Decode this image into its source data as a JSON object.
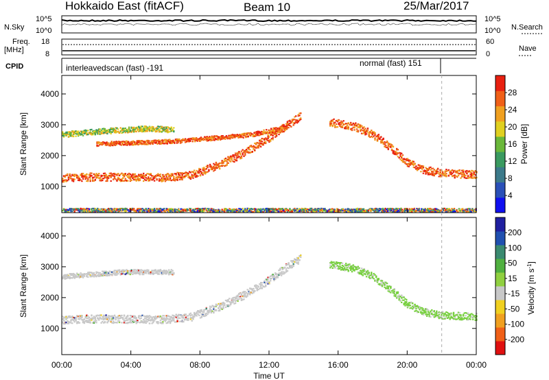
{
  "header": {
    "radar": "Hokkaido East (fitACF)",
    "beam": "Beam 10",
    "date": "25/Mar/2017"
  },
  "noise_panel": {
    "left_label": "N.Sky",
    "right_label": "N.Search",
    "tick_top": "10^5",
    "tick_bottom": "10^0"
  },
  "freq_panel": {
    "label_line1": "Freq.",
    "label_line2": "[MHz]",
    "tick_top": "18",
    "tick_bottom": "8",
    "right_label": "Nave",
    "right_tick_top": "60",
    "right_tick_bottom": "0"
  },
  "cpid_panel": {
    "label": "CPID",
    "segments": [
      {
        "text": "interleavedscan (fast) -191",
        "start_hour": 0,
        "end_hour": 22
      },
      {
        "text": "normal (fast) 151",
        "start_hour": 22,
        "end_hour": 24
      }
    ]
  },
  "x_axis": {
    "label": "Time UT",
    "ticks": [
      "00:00",
      "04:00",
      "08:00",
      "12:00",
      "16:00",
      "20:00",
      "00:00"
    ],
    "range_hours": [
      0,
      24
    ]
  },
  "chart_data": [
    {
      "type": "heatmap",
      "name": "power",
      "ylabel": "Slant Range [km]",
      "y_ticks": [
        1000,
        2000,
        3000,
        4000
      ],
      "ylim": [
        150,
        4600
      ],
      "colorbar": {
        "label": "Power [dB]",
        "ticks": [
          "4",
          "8",
          "12",
          "16",
          "20",
          "24",
          "28"
        ],
        "colors": [
          "#1010f0",
          "#2a50b8",
          "#3c7a8a",
          "#3a9a60",
          "#6ab83a",
          "#e0d020",
          "#f0a020",
          "#f06018",
          "#e82010"
        ]
      },
      "bands": [
        {
          "desc": "main echo band",
          "pts": [
            [
              0,
              1300
            ],
            [
              2,
              1330
            ],
            [
              4,
              1320
            ],
            [
              6,
              1310
            ],
            [
              7.5,
              1400
            ],
            [
              9,
              1700
            ],
            [
              10.5,
              2100
            ],
            [
              12,
              2600
            ],
            [
              13,
              3000
            ],
            [
              13.8,
              3300
            ]
          ],
          "width": 260,
          "level": "high"
        },
        {
          "desc": "upper echo band",
          "pts": [
            [
              0,
              2700
            ],
            [
              2,
              2800
            ],
            [
              3.5,
              2850
            ],
            [
              5,
              2900
            ],
            [
              6.5,
              2850
            ]
          ],
          "width": 180,
          "level": "mid"
        },
        {
          "desc": "mid echo band",
          "pts": [
            [
              2,
              2400
            ],
            [
              5,
              2450
            ],
            [
              7,
              2500
            ],
            [
              9,
              2600
            ],
            [
              11,
              2700
            ],
            [
              13,
              2950
            ]
          ],
          "width": 140,
          "level": "high"
        },
        {
          "desc": "afternoon descending band",
          "pts": [
            [
              15.5,
              3100
            ],
            [
              17,
              2950
            ],
            [
              18,
              2700
            ],
            [
              19,
              2300
            ],
            [
              20,
              1800
            ],
            [
              21,
              1550
            ],
            [
              22,
              1450
            ],
            [
              24,
              1400
            ]
          ],
          "width": 260,
          "level": "high"
        },
        {
          "desc": "near range clutter",
          "pts": [
            [
              0,
              250
            ],
            [
              24,
              250
            ]
          ],
          "width": 120,
          "level": "low"
        }
      ]
    },
    {
      "type": "heatmap",
      "name": "velocity",
      "ylabel": "Slant Range [km]",
      "y_ticks": [
        1000,
        2000,
        3000,
        4000
      ],
      "ylim": [
        150,
        4600
      ],
      "colorbar": {
        "label": "Velocity [m s^-1]",
        "ticks": [
          "200",
          "100",
          "50",
          "15",
          "-15",
          "-50",
          "-100",
          "-200"
        ],
        "colors": [
          "#2020a0",
          "#2050b0",
          "#3a8a70",
          "#50b040",
          "#90d040",
          "#c8c8c8",
          "#f0d020",
          "#f0a020",
          "#f06018",
          "#e01010"
        ]
      },
      "bands": [
        {
          "desc": "ground scatter band",
          "pts": [
            [
              0,
              1300
            ],
            [
              2,
              1330
            ],
            [
              4,
              1320
            ],
            [
              6,
              1310
            ],
            [
              7.5,
              1400
            ],
            [
              9,
              1700
            ],
            [
              10.5,
              2100
            ],
            [
              12,
              2600
            ],
            [
              13,
              3000
            ],
            [
              13.8,
              3300
            ]
          ],
          "width": 260,
          "color": "gray"
        },
        {
          "desc": "upper band",
          "pts": [
            [
              0,
              2700
            ],
            [
              3.5,
              2850
            ],
            [
              6.5,
              2850
            ]
          ],
          "width": 160,
          "color": "gray"
        },
        {
          "desc": "afternoon positive velocity band",
          "pts": [
            [
              15.5,
              3100
            ],
            [
              17,
              2950
            ],
            [
              18,
              2700
            ],
            [
              19,
              2300
            ],
            [
              20,
              1800
            ],
            [
              21,
              1550
            ],
            [
              22,
              1450
            ],
            [
              24,
              1400
            ]
          ],
          "width": 240,
          "color": "green"
        }
      ]
    }
  ]
}
